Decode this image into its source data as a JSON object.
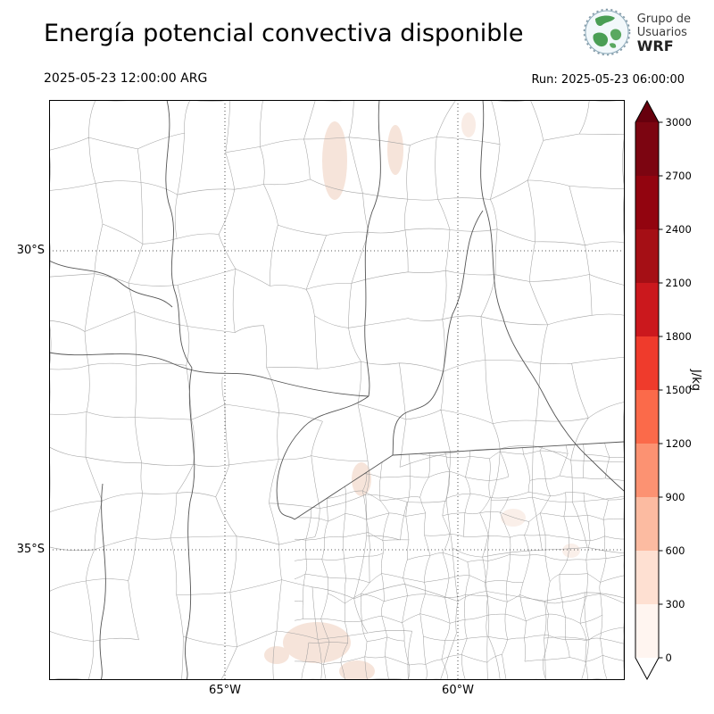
{
  "header": {
    "title": "Energía potencial convectiva disponible",
    "logo": {
      "org_line1": "Grupo de",
      "org_line2": "Usuarios",
      "org_line3": "WRF"
    }
  },
  "times": {
    "valid": "2025-05-23 12:00:00 ARG",
    "run": "Run: 2025-05-23 06:00:00"
  },
  "map": {
    "lat_labels": [
      {
        "text": "30°S"
      },
      {
        "text": "35°S"
      }
    ],
    "lon_labels": [
      {
        "text": "65°W"
      },
      {
        "text": "60°W"
      }
    ]
  },
  "colorbar": {
    "unit": "J/kg",
    "tick_labels": [
      "3000",
      "2700",
      "2400",
      "2100",
      "1800",
      "1500",
      "1200",
      "900",
      "600",
      "300",
      "0"
    ],
    "segment_colors_top_to_bottom": [
      "#7c0511",
      "#92040f",
      "#a50f15",
      "#cb181d",
      "#ef3b2c",
      "#fb6a4a",
      "#fc9272",
      "#fcbba1",
      "#fee0d2",
      "#fff5f0"
    ],
    "over_arrow_color": "#67000d",
    "under_arrow_color": "#ffffff"
  },
  "chart_data": {
    "type": "heatmap",
    "title": "Energía potencial convectiva disponible",
    "units": "J/kg",
    "levels": [
      0,
      300,
      600,
      900,
      1200,
      1500,
      1800,
      2100,
      2400,
      2700,
      3000
    ],
    "valid_time": "2025-05-23 12:00:00 ARG",
    "run_time": "2025-05-23 06:00:00",
    "lat_ticks": [
      "30°S",
      "35°S"
    ],
    "lon_ticks": [
      "65°W",
      "60°W"
    ],
    "legend_position": "right",
    "description": "WRF model CAPE field over central Argentina; values near 0 J/kg over almost the whole domain with a few faint patches in the 0-300 J/kg class (top centre, centre and bottom-centre of the map)."
  }
}
